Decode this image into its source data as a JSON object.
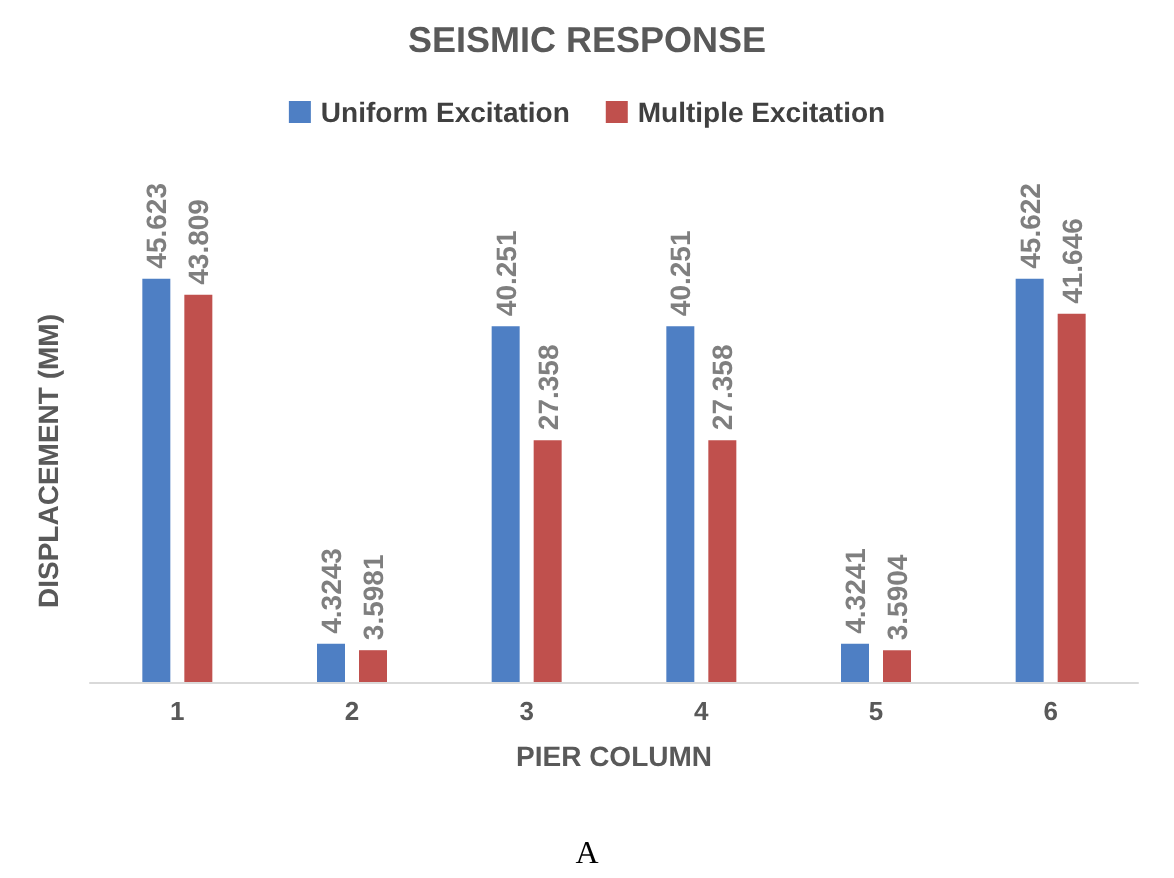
{
  "chart_data": {
    "type": "bar",
    "title": "SEISMIC RESPONSE",
    "xlabel": "PIER COLUMN",
    "ylabel": "DISPLACEMENT (MM)",
    "categories": [
      "1",
      "2",
      "3",
      "4",
      "5",
      "6"
    ],
    "series": [
      {
        "name": "Uniform Excitation",
        "color": "#4e7fc4",
        "values": [
          45.623,
          4.3243,
          40.251,
          40.251,
          4.3241,
          45.622
        ]
      },
      {
        "name": "Multiple Excitation",
        "color": "#c0504d",
        "values": [
          43.809,
          3.5981,
          27.358,
          27.358,
          3.5904,
          41.646
        ]
      }
    ],
    "data_labels": true,
    "legend": "top",
    "grid": false,
    "annotations": [
      "A"
    ]
  }
}
